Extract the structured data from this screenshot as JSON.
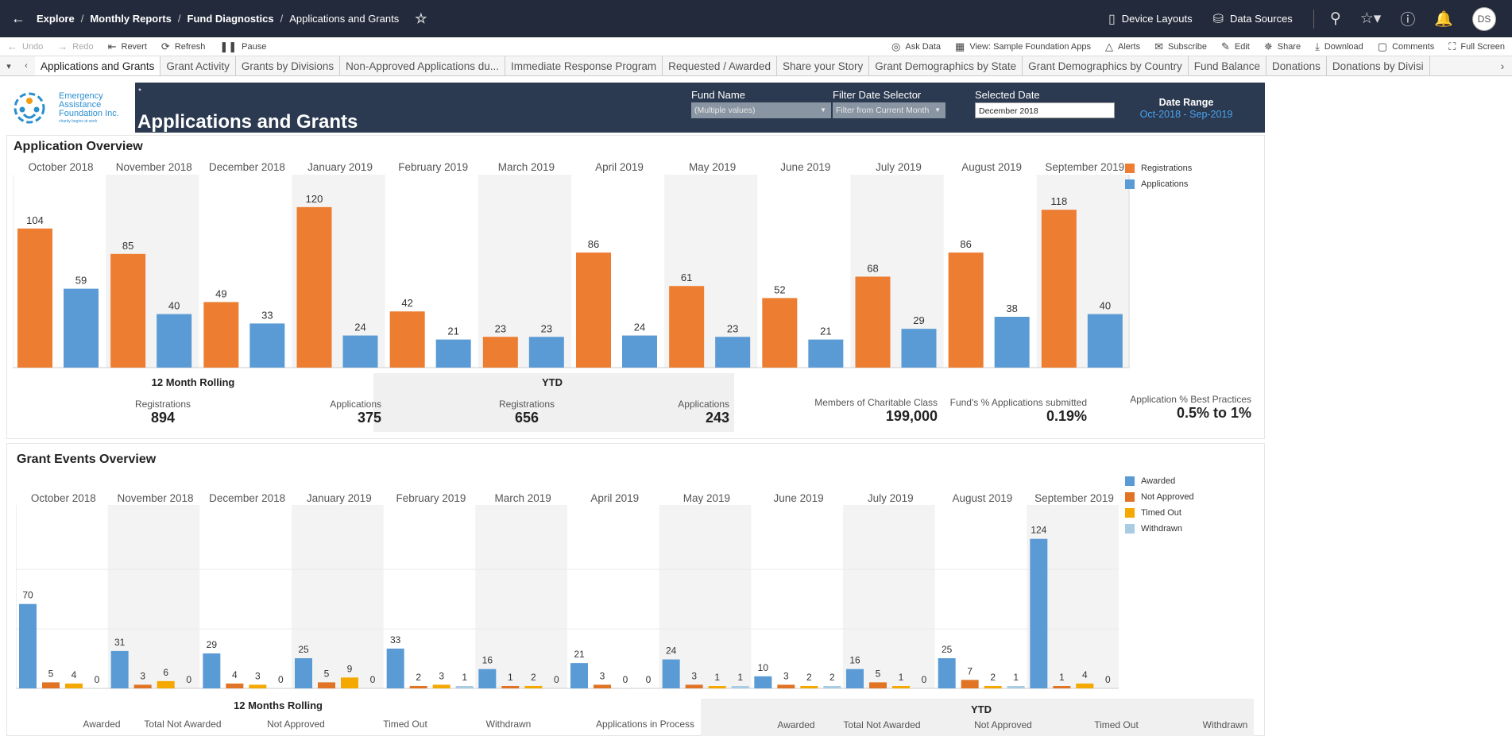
{
  "topbar": {
    "breadcrumbs": [
      "Explore",
      "Monthly Reports",
      "Fund Diagnostics",
      "Applications and Grants"
    ],
    "device_layouts": "Device Layouts",
    "data_sources": "Data Sources",
    "avatar": "DS"
  },
  "toolbar": {
    "undo": "Undo",
    "redo": "Redo",
    "revert": "Revert",
    "refresh": "Refresh",
    "pause": "Pause",
    "ask_data": "Ask Data",
    "view": "View: Sample Foundation Apps",
    "alerts": "Alerts",
    "subscribe": "Subscribe",
    "edit": "Edit",
    "share": "Share",
    "download": "Download",
    "comments": "Comments",
    "full_screen": "Full Screen"
  },
  "tabs": [
    "Applications and Grants",
    "Grant Activity",
    "Grants by Divisions",
    "Non-Approved Applications du...",
    "Immediate Response Program",
    "Requested / Awarded",
    "Share your Story",
    "Grant Demographics by State",
    "Grant Demographics by Country",
    "Fund Balance",
    "Donations",
    "Donations by Divisi"
  ],
  "header": {
    "logo_name": [
      "Emergency",
      "Assistance",
      "Foundation Inc."
    ],
    "logo_tag": "charity begins at work",
    "asterisk": "*",
    "title": "Applications and Grants",
    "fund_name_label": "Fund Name",
    "fund_name_value": "(Multiple values)",
    "filter_date_label": "Filter Date Selector",
    "filter_date_value": "Filter from Current Month",
    "selected_date_label": "Selected Date",
    "selected_date_value": "December 2018",
    "date_range_label": "Date Range",
    "date_range_value": "Oct-2018 - Sep-2019"
  },
  "app_overview": {
    "title": "Application Overview",
    "rolling_head": "12 Month Rolling",
    "ytd_head": "YTD",
    "rolling_reg_label": "Registrations",
    "rolling_reg_value": "894",
    "rolling_app_label": "Applications",
    "rolling_app_value": "375",
    "ytd_reg_label": "Registrations",
    "ytd_reg_value": "656",
    "ytd_app_label": "Applications",
    "ytd_app_value": "243",
    "members_label": "Members of Charitable Class",
    "members_value": "199,000",
    "pct_label": "Fund's % Applications submitted",
    "pct_value": "0.19%",
    "best_label": "Application % Best Practices",
    "best_value": "0.5% to 1%"
  },
  "grant_overview": {
    "title": "Grant Events Overview",
    "rolling_head": "12 Months Rolling",
    "ytd_head": "YTD",
    "rolling_labels": [
      "Awarded",
      "Total Not Awarded",
      "Not Approved",
      "Timed Out",
      "Withdrawn",
      "Applications in Process"
    ],
    "ytd_labels": [
      "Awarded",
      "Total Not Awarded",
      "Not Approved",
      "Timed Out",
      "Withdrawn"
    ]
  },
  "colors": {
    "registrations": "#ed7d31",
    "applications": "#5b9bd5",
    "awarded": "#5b9bd5",
    "not_approved": "#e07324",
    "timed_out": "#f5a800",
    "withdrawn": "#a9cce3",
    "banner": "#2b3a50"
  },
  "chart_data": [
    {
      "type": "bar",
      "categories": [
        "October 2018",
        "November 2018",
        "December 2018",
        "January 2019",
        "February 2019",
        "March 2019",
        "April 2019",
        "May 2019",
        "June 2019",
        "July 2019",
        "August 2019",
        "September 2019"
      ],
      "series": [
        {
          "name": "Registrations",
          "values": [
            104,
            85,
            49,
            120,
            42,
            23,
            86,
            61,
            52,
            68,
            86,
            118
          ]
        },
        {
          "name": "Applications",
          "values": [
            59,
            40,
            33,
            24,
            21,
            23,
            24,
            23,
            21,
            29,
            38,
            40
          ]
        }
      ],
      "legend": "top-right",
      "ylim": [
        0,
        130
      ]
    },
    {
      "type": "bar",
      "categories": [
        "October 2018",
        "November 2018",
        "December 2018",
        "January 2019",
        "February 2019",
        "March 2019",
        "April 2019",
        "May 2019",
        "June 2019",
        "July 2019",
        "August 2019",
        "September 2019"
      ],
      "series": [
        {
          "name": "Awarded",
          "values": [
            70,
            31,
            29,
            25,
            33,
            16,
            21,
            24,
            10,
            16,
            25,
            124
          ]
        },
        {
          "name": "Not Approved",
          "values": [
            5,
            3,
            4,
            5,
            2,
            1,
            3,
            3,
            3,
            5,
            7,
            1
          ]
        },
        {
          "name": "Timed Out",
          "values": [
            4,
            6,
            3,
            9,
            3,
            2,
            0,
            1,
            2,
            1,
            2,
            4
          ]
        },
        {
          "name": "Withdrawn",
          "values": [
            0,
            0,
            0,
            0,
            1,
            0,
            0,
            1,
            2,
            0,
            1,
            0
          ]
        }
      ],
      "legend": "top-right",
      "ylim": [
        0,
        135
      ]
    }
  ]
}
